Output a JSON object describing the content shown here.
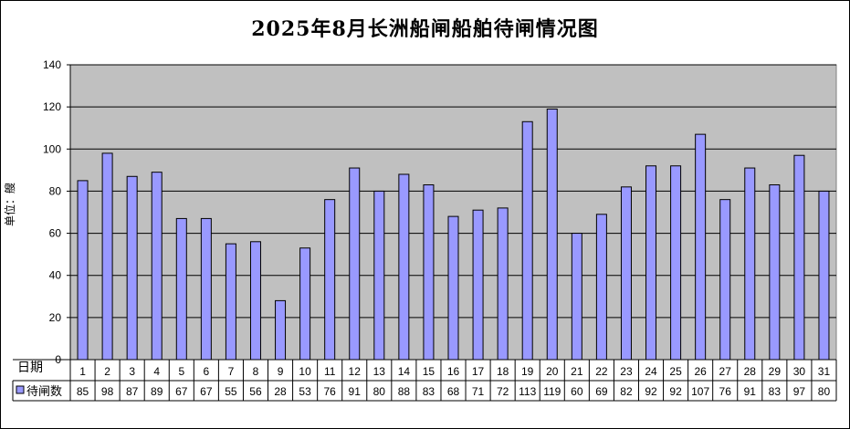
{
  "chart_data": {
    "type": "bar",
    "title": "2025年8月长洲船闸船舶待闸情况图",
    "ylabel": "单位：艘",
    "xlabel": "日期",
    "ylim": [
      0,
      140
    ],
    "ytick_step": 20,
    "grid": true,
    "legend": "bottom-left (data table)",
    "colors": {
      "plot_bg": "#c0c0c0",
      "bar_fill": "#9999ff",
      "bar_stroke": "#000000"
    },
    "categories": [
      "1",
      "2",
      "3",
      "4",
      "5",
      "6",
      "7",
      "8",
      "9",
      "10",
      "11",
      "12",
      "13",
      "14",
      "15",
      "16",
      "17",
      "18",
      "19",
      "20",
      "21",
      "22",
      "23",
      "24",
      "25",
      "26",
      "27",
      "28",
      "29",
      "30",
      "31"
    ],
    "series": [
      {
        "name": "待闸数",
        "values": [
          85,
          98,
          87,
          89,
          67,
          67,
          55,
          56,
          28,
          53,
          76,
          91,
          80,
          88,
          83,
          68,
          71,
          72,
          113,
          119,
          60,
          69,
          82,
          92,
          92,
          107,
          76,
          91,
          83,
          97,
          80
        ]
      }
    ]
  }
}
